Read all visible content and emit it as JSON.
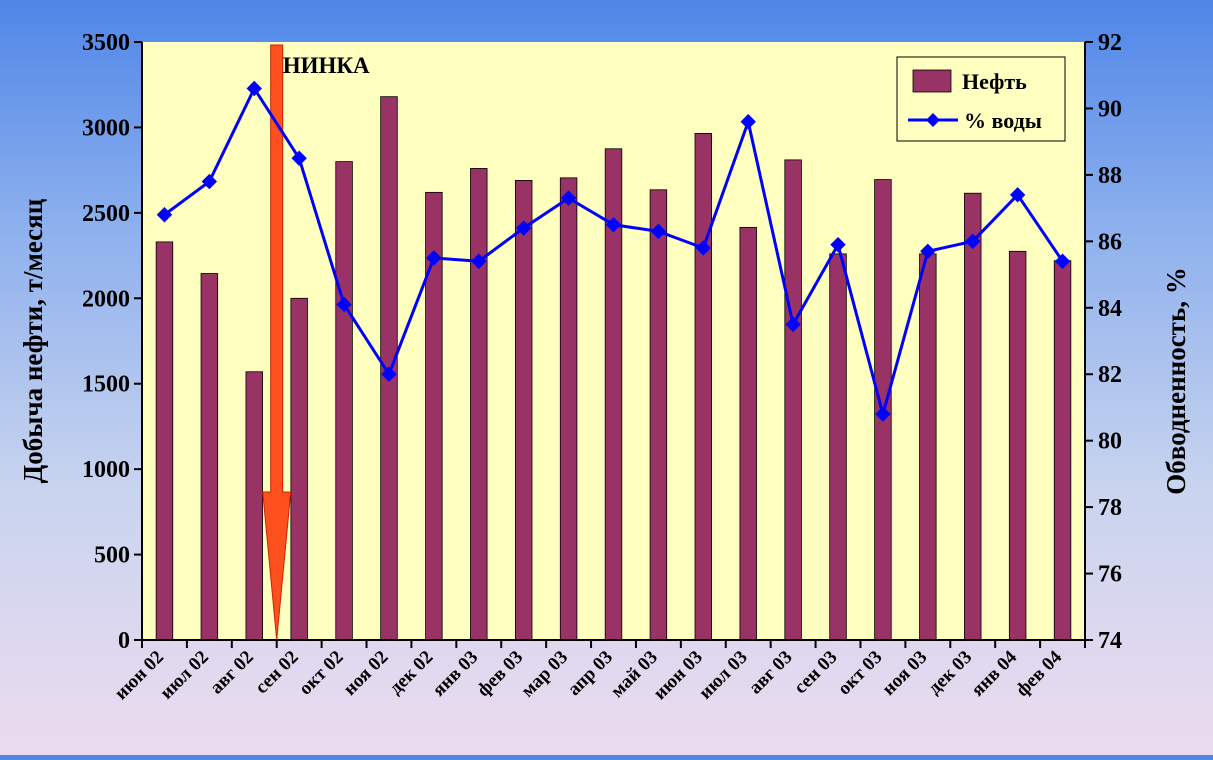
{
  "chart_data": {
    "type": "bar+line",
    "title": "",
    "categories": [
      "июн 02",
      "июл 02",
      "авг 02",
      "сен 02",
      "окт 02",
      "ноя 02",
      "дек 02",
      "янв 03",
      "фев 03",
      "мар 03",
      "апр 03",
      "май 03",
      "июн 03",
      "июл 03",
      "авг 03",
      "сен 03",
      "окт 03",
      "ноя 03",
      "дек 03",
      "янв 04",
      "фев 04"
    ],
    "series": [
      {
        "name": "Нефть",
        "type": "bar",
        "axis": "left",
        "color": "#993366",
        "values": [
          2330,
          2145,
          1570,
          2000,
          2800,
          3180,
          2620,
          2760,
          2690,
          2705,
          2875,
          2635,
          2965,
          2415,
          2810,
          2260,
          2695,
          2260,
          2615,
          2275,
          2220
        ]
      },
      {
        "name": "% воды",
        "type": "line",
        "axis": "right",
        "color": "#0000ff",
        "values": [
          86.8,
          87.8,
          90.6,
          88.5,
          84.1,
          82.0,
          85.5,
          85.4,
          86.4,
          87.3,
          86.5,
          86.3,
          85.8,
          89.6,
          83.5,
          85.9,
          80.8,
          85.7,
          86.0,
          87.4,
          85.4
        ]
      }
    ],
    "ylabel": "Добыча нефти, т/месяц",
    "ylabel_right": "Обводненность, %",
    "ylim": [
      0,
      3500
    ],
    "ylim_right": [
      74,
      92
    ],
    "yticks": [
      0,
      500,
      1000,
      1500,
      2000,
      2500,
      3000,
      3500
    ],
    "yticks_right": [
      74,
      76,
      78,
      80,
      82,
      84,
      86,
      88,
      90,
      92
    ],
    "grid": false,
    "plot_background": "#ffffc0",
    "legend": {
      "position": "top-right",
      "labels": [
        "Нефть",
        "% воды"
      ]
    },
    "annotation": {
      "text": "НИНКА",
      "marker": "down-arrow",
      "x_between": [
        "авг 02",
        "сен 02"
      ],
      "color": "#ff3300"
    }
  }
}
